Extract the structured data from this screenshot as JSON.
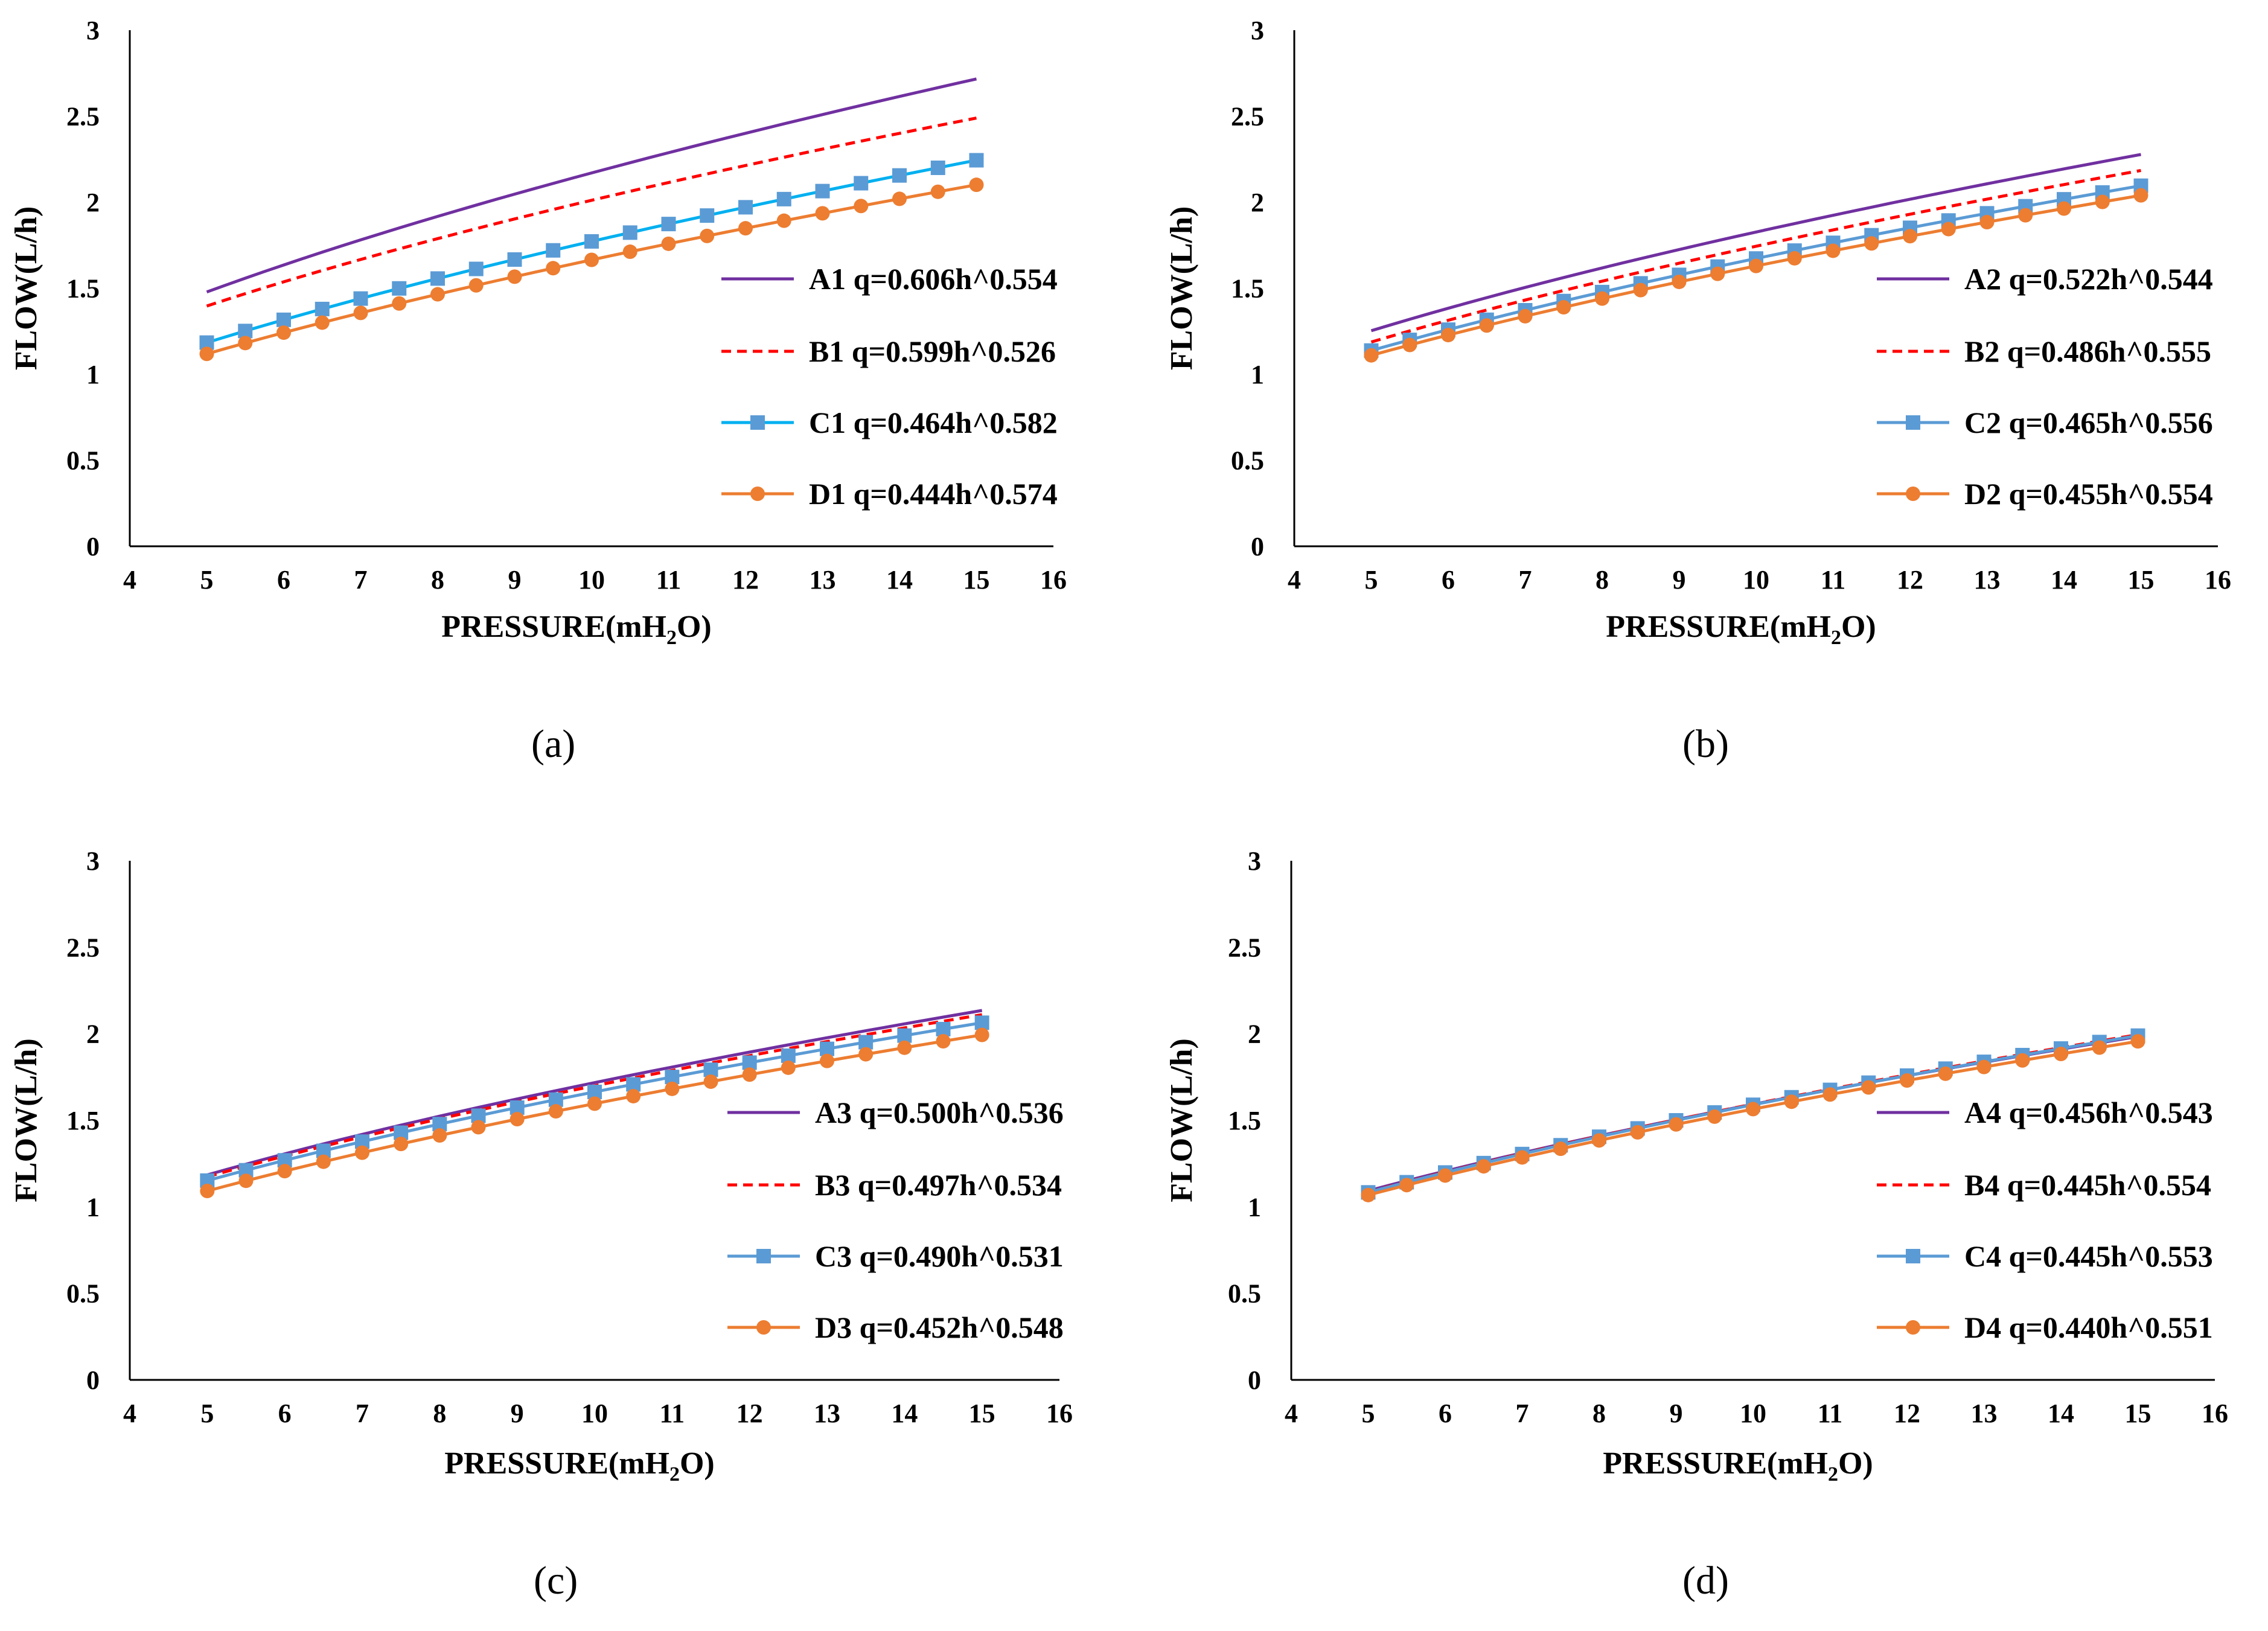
{
  "colors": {
    "A": "#7030A0",
    "B": "#FF0000",
    "C_a": "#00B0F0",
    "C_marker": "#5B9BD5",
    "C": "#5B9BD5",
    "D": "#ED7D31"
  },
  "chart_data": [
    {
      "panel_label": "(a)",
      "type": "line",
      "xlabel_main": "PRESSURE(mH",
      "xlabel_sub": "2",
      "xlabel_end": "O)",
      "ylabel": "FLOW(L/h)",
      "xlim": [
        4,
        16
      ],
      "ylim": [
        0,
        3
      ],
      "xticks": [
        "4",
        "5",
        "6",
        "7",
        "8",
        "9",
        "10",
        "11",
        "12",
        "13",
        "14",
        "15",
        "16"
      ],
      "yticks": [
        "0",
        "0.5",
        "1",
        "1.5",
        "2",
        "2.5",
        "3"
      ],
      "legend_position": "center-right",
      "series": [
        {
          "name": "A1 q=0.606h^0.554",
          "coef": 0.606,
          "exp": 0.554,
          "style": "solid",
          "marker": "none",
          "color_key": "A"
        },
        {
          "name": "B1 q=0.599h^0.526",
          "coef": 0.599,
          "exp": 0.526,
          "style": "dashed",
          "marker": "none",
          "color_key": "B"
        },
        {
          "name": "C1 q=0.464h^0.582",
          "coef": 0.464,
          "exp": 0.582,
          "style": "solid",
          "marker": "square",
          "color_key": "C_a"
        },
        {
          "name": "D1 q=0.444h^0.574",
          "coef": 0.444,
          "exp": 0.574,
          "style": "solid",
          "marker": "circle",
          "color_key": "D"
        }
      ]
    },
    {
      "panel_label": "(b)",
      "type": "line",
      "xlabel_main": "PRESSURE(mH",
      "xlabel_sub": "2",
      "xlabel_end": "O)",
      "ylabel": "FLOW(L/h)",
      "xlim": [
        4,
        16
      ],
      "ylim": [
        0,
        3
      ],
      "xticks": [
        "4",
        "5",
        "6",
        "7",
        "8",
        "9",
        "10",
        "11",
        "12",
        "13",
        "14",
        "15",
        "16"
      ],
      "yticks": [
        "0",
        "0.5",
        "1",
        "1.5",
        "2",
        "2.5",
        "3"
      ],
      "legend_position": "center-right",
      "series": [
        {
          "name": "A2 q=0.522h^0.544",
          "coef": 0.522,
          "exp": 0.544,
          "style": "solid",
          "marker": "none",
          "color_key": "A"
        },
        {
          "name": "B2 q=0.486h^0.555",
          "coef": 0.486,
          "exp": 0.555,
          "style": "dashed",
          "marker": "none",
          "color_key": "B"
        },
        {
          "name": "C2 q=0.465h^0.556",
          "coef": 0.465,
          "exp": 0.556,
          "style": "solid",
          "marker": "square",
          "color_key": "C"
        },
        {
          "name": "D2 q=0.455h^0.554",
          "coef": 0.455,
          "exp": 0.554,
          "style": "solid",
          "marker": "circle",
          "color_key": "D"
        }
      ]
    },
    {
      "panel_label": "(c)",
      "type": "line",
      "xlabel_main": "PRESSURE(mH",
      "xlabel_sub": "2",
      "xlabel_end": "O)",
      "ylabel": "FLOW(L/h)",
      "xlim": [
        4,
        16
      ],
      "ylim": [
        0,
        3
      ],
      "xticks": [
        "4",
        "5",
        "6",
        "7",
        "8",
        "9",
        "10",
        "11",
        "12",
        "13",
        "14",
        "15",
        "16"
      ],
      "yticks": [
        "0",
        "0.5",
        "1",
        "1.5",
        "2",
        "2.5",
        "3"
      ],
      "legend_position": "center-right",
      "series": [
        {
          "name": "A3 q=0.500h^0.536",
          "coef": 0.5,
          "exp": 0.536,
          "style": "solid",
          "marker": "none",
          "color_key": "A"
        },
        {
          "name": "B3 q=0.497h^0.534",
          "coef": 0.497,
          "exp": 0.534,
          "style": "dashed",
          "marker": "none",
          "color_key": "B"
        },
        {
          "name": "C3 q=0.490h^0.531",
          "coef": 0.49,
          "exp": 0.531,
          "style": "solid",
          "marker": "square",
          "color_key": "C"
        },
        {
          "name": "D3 q=0.452h^0.548",
          "coef": 0.452,
          "exp": 0.548,
          "style": "solid",
          "marker": "circle",
          "color_key": "D"
        }
      ]
    },
    {
      "panel_label": "(d)",
      "type": "line",
      "xlabel_main": "PRESSURE(mH",
      "xlabel_sub": "2",
      "xlabel_end": "O)",
      "ylabel": "FLOW(L/h)",
      "xlim": [
        4,
        16
      ],
      "ylim": [
        0,
        3
      ],
      "xticks": [
        "4",
        "5",
        "6",
        "7",
        "8",
        "9",
        "10",
        "11",
        "12",
        "13",
        "14",
        "15",
        "16"
      ],
      "yticks": [
        "0",
        "0.5",
        "1",
        "1.5",
        "2",
        "2.5",
        "3"
      ],
      "legend_position": "center-right",
      "series": [
        {
          "name": "A4 q=0.456h^0.543",
          "coef": 0.456,
          "exp": 0.543,
          "style": "solid",
          "marker": "none",
          "color_key": "A"
        },
        {
          "name": "B4 q=0.445h^0.554",
          "coef": 0.445,
          "exp": 0.554,
          "style": "dashed",
          "marker": "none",
          "color_key": "B"
        },
        {
          "name": "C4 q=0.445h^0.553",
          "coef": 0.445,
          "exp": 0.553,
          "style": "solid",
          "marker": "square",
          "color_key": "C"
        },
        {
          "name": "D4 q=0.440h^0.551",
          "coef": 0.44,
          "exp": 0.551,
          "style": "solid",
          "marker": "circle",
          "color_key": "D"
        }
      ]
    }
  ]
}
